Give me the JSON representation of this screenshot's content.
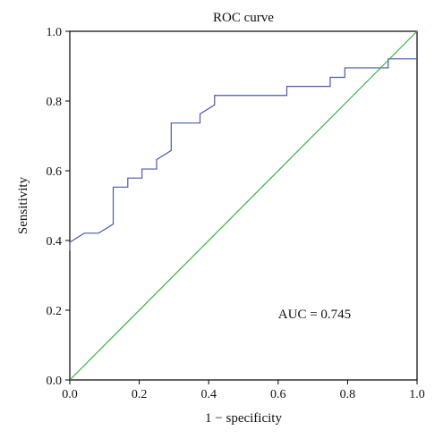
{
  "chart_data": {
    "type": "line",
    "title": "ROC curve",
    "xlabel": "1 − specificity",
    "ylabel": "Sensitivity",
    "xlim": [
      0,
      1
    ],
    "ylim": [
      0,
      1
    ],
    "x_ticks": [
      {
        "value": 0.0,
        "label": "0.0"
      },
      {
        "value": 0.2,
        "label": "0.2"
      },
      {
        "value": 0.4,
        "label": "0.4"
      },
      {
        "value": 0.6,
        "label": "0.6"
      },
      {
        "value": 0.8,
        "label": "0.8"
      },
      {
        "value": 1.0,
        "label": "1.0"
      }
    ],
    "y_ticks": [
      {
        "value": 0.0,
        "label": "0.0"
      },
      {
        "value": 0.2,
        "label": "0.2"
      },
      {
        "value": 0.4,
        "label": "0.4"
      },
      {
        "value": 0.6,
        "label": "0.6"
      },
      {
        "value": 0.8,
        "label": "0.8"
      },
      {
        "value": 1.0,
        "label": "1.0"
      }
    ],
    "grid": false,
    "annotation": {
      "text": "AUC = 0.745",
      "x": 0.6,
      "y": 0.19
    },
    "series": [
      {
        "color": "#4a5aa8",
        "x": [
          0.0,
          0.0,
          0.042,
          0.042,
          0.083,
          0.083,
          0.125,
          0.125,
          0.167,
          0.167,
          0.208,
          0.208,
          0.25,
          0.25,
          0.292,
          0.292,
          0.375,
          0.375,
          0.417,
          0.417,
          0.625,
          0.625,
          0.75,
          0.75,
          0.792,
          0.792,
          0.917,
          0.917,
          1.0
        ],
        "y": [
          0.37,
          0.395,
          0.421,
          0.421,
          0.421,
          0.421,
          0.447,
          0.553,
          0.553,
          0.579,
          0.579,
          0.605,
          0.605,
          0.632,
          0.658,
          0.737,
          0.737,
          0.763,
          0.789,
          0.816,
          0.816,
          0.842,
          0.842,
          0.868,
          0.868,
          0.895,
          0.895,
          0.921,
          0.921
        ]
      },
      {
        "color": "#3cb043",
        "x": [
          0,
          1
        ],
        "y": [
          0,
          1
        ]
      }
    ]
  }
}
